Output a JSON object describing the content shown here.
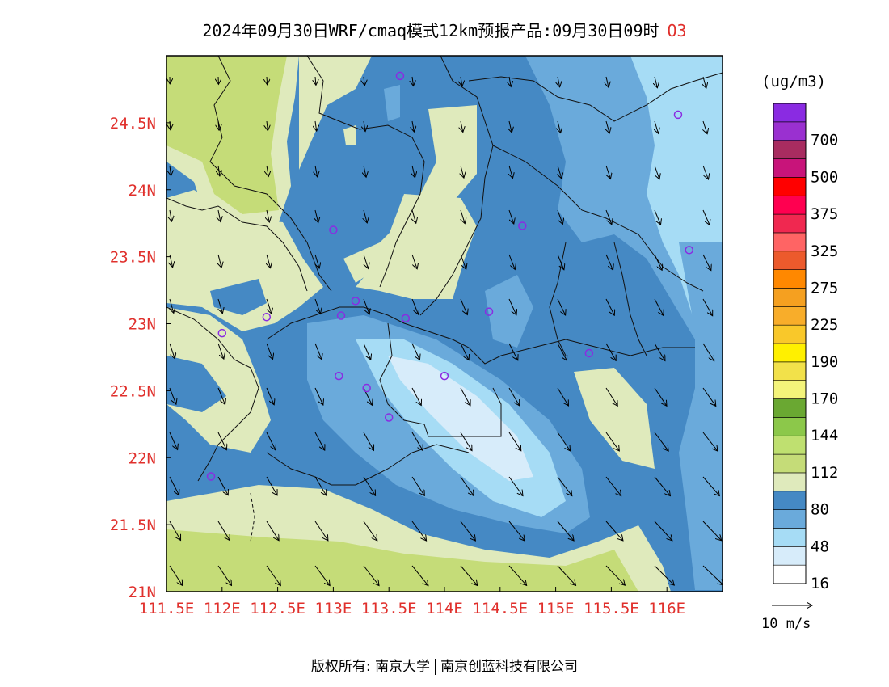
{
  "header": {
    "title": "2024年09月30日WRF/cmaq模式12km预报产品:09月30日09时",
    "pollutant": "O3"
  },
  "legend": {
    "unit": "(ug/m3)",
    "classes": [
      {
        "color": "#ffffff",
        "label": "16"
      },
      {
        "color": "#d7ecfa",
        "label": ""
      },
      {
        "color": "#a6dcf5",
        "label": "48"
      },
      {
        "color": "#6aaadb",
        "label": ""
      },
      {
        "color": "#4589c4",
        "label": "80"
      },
      {
        "color": "#dfeabc",
        "label": ""
      },
      {
        "color": "#c5dc78",
        "label": "112"
      },
      {
        "color": "#bfe070",
        "label": ""
      },
      {
        "color": "#8cc84a",
        "label": "144"
      },
      {
        "color": "#6aa832",
        "label": ""
      },
      {
        "color": "#f4f47a",
        "label": "170"
      },
      {
        "color": "#f2e14a",
        "label": ""
      },
      {
        "color": "#fff000",
        "label": "190"
      },
      {
        "color": "#f9c82a",
        "label": ""
      },
      {
        "color": "#f8ad2a",
        "label": "225"
      },
      {
        "color": "#f5a020",
        "label": ""
      },
      {
        "color": "#ff8800",
        "label": "275"
      },
      {
        "color": "#ec5a2c",
        "label": ""
      },
      {
        "color": "#ff6464",
        "label": "325"
      },
      {
        "color": "#f02850",
        "label": ""
      },
      {
        "color": "#ff0050",
        "label": "375"
      },
      {
        "color": "#ff0000",
        "label": ""
      },
      {
        "color": "#c8147a",
        "label": "500"
      },
      {
        "color": "#a82c60",
        "label": ""
      },
      {
        "color": "#9a30d0",
        "label": "700"
      },
      {
        "color": "#8a2be2",
        "label": ""
      }
    ]
  },
  "vector_reference": {
    "label": "10 m/s"
  },
  "axes": {
    "x_ticks": [
      "111.5E",
      "112E",
      "112.5E",
      "113E",
      "113.5E",
      "114E",
      "114.5E",
      "115E",
      "115.5E",
      "116E"
    ],
    "y_ticks": [
      "21N",
      "21.5N",
      "22N",
      "22.5N",
      "23N",
      "23.5N",
      "24N",
      "24.5N"
    ],
    "tick_color": "#e0302c"
  },
  "stations": [
    {
      "lon": 113.6,
      "lat": 24.85
    },
    {
      "lon": 113.0,
      "lat": 23.7
    },
    {
      "lon": 114.7,
      "lat": 23.73
    },
    {
      "lon": 116.1,
      "lat": 24.56
    },
    {
      "lon": 116.2,
      "lat": 23.55
    },
    {
      "lon": 112.4,
      "lat": 23.05
    },
    {
      "lon": 112.0,
      "lat": 22.93
    },
    {
      "lon": 113.07,
      "lat": 23.06
    },
    {
      "lon": 113.2,
      "lat": 23.17
    },
    {
      "lon": 113.65,
      "lat": 23.04
    },
    {
      "lon": 114.4,
      "lat": 23.09
    },
    {
      "lon": 115.3,
      "lat": 22.78
    },
    {
      "lon": 113.05,
      "lat": 22.61
    },
    {
      "lon": 113.3,
      "lat": 22.52
    },
    {
      "lon": 114.0,
      "lat": 22.61
    },
    {
      "lon": 113.5,
      "lat": 22.3
    },
    {
      "lon": 111.9,
      "lat": 21.86
    }
  ],
  "footer": {
    "copyright_left": "版权所有: 南京大学",
    "copyright_right": "南京创蓝科技有限公司"
  }
}
